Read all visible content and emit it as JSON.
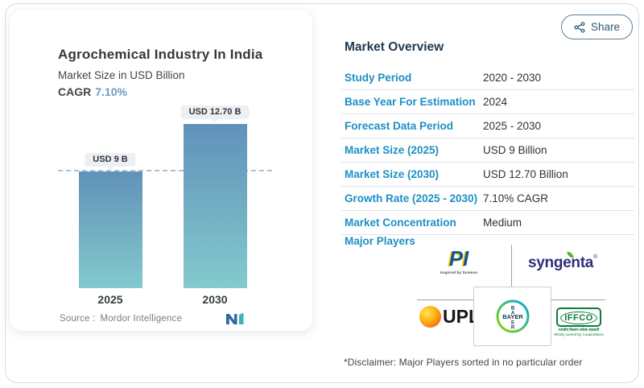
{
  "chart_data": {
    "type": "bar",
    "title": "Agrochemical Industry In India",
    "subtitle": "Market Size in USD Billion",
    "cagr_label": "CAGR",
    "cagr_value": "7.10%",
    "categories": [
      "2025",
      "2030"
    ],
    "values": [
      9,
      12.7
    ],
    "value_labels": [
      "USD 9 B",
      "USD 12.70 B"
    ],
    "unit": "USD Billion",
    "ylim": [
      0,
      22
    ],
    "grid": "off",
    "reference_line_at": 9,
    "legend": "none",
    "source_label": "Source :",
    "source_value": "Mordor Intelligence"
  },
  "share_button": {
    "label": "Share"
  },
  "overview": {
    "title": "Market Overview",
    "rows": [
      {
        "label": "Study Period",
        "value": "2020 - 2030"
      },
      {
        "label": "Base Year For Estimation",
        "value": "2024"
      },
      {
        "label": "Forecast Data Period",
        "value": "2025 - 2030"
      },
      {
        "label": "Market Size (2025)",
        "value": "USD 9 Billion"
      },
      {
        "label": "Market Size (2030)",
        "value": "USD 12.70 Billion"
      },
      {
        "label": "Growth Rate (2025 - 2030)",
        "value": "7.10% CAGR"
      },
      {
        "label": "Market Concentration",
        "value": "Medium"
      }
    ],
    "major_players_label": "Major Players",
    "players": {
      "pi": {
        "name": "PI",
        "tagline": "Inspired by Science"
      },
      "syngenta": {
        "name": "syngenta",
        "reg": "®"
      },
      "upl": {
        "name": "UPL"
      },
      "bayer": {
        "name": "BAYER",
        "vertical": [
          "B",
          "A",
          "E",
          "R"
        ]
      },
      "iffco": {
        "name": "IFFCO",
        "tagline_hindi": "भारतीय किसान उर्वरक सहकारी",
        "tagline": "Wholly owned by Cooperatives"
      }
    },
    "disclaimer": "*Disclaimer: Major Players sorted in no particular order"
  },
  "colors": {
    "accent_blue": "#1c8fc4",
    "navy_heading": "#203a50",
    "cagr_blue": "#6a9cc3",
    "bar_gradient_top": "#6092ba",
    "bar_gradient_bottom": "#82cace",
    "reference_dash": "#aac4d6",
    "share_button": "#2a5a78"
  }
}
